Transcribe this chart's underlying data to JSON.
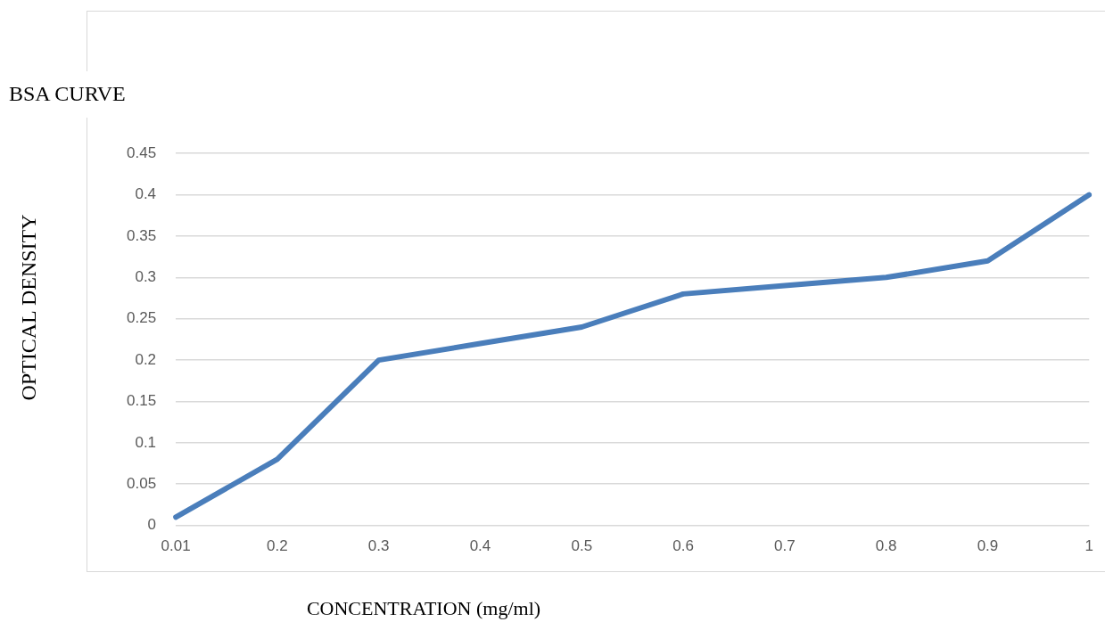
{
  "chart_data": {
    "type": "line",
    "title": "BSA CURVE",
    "xlabel": "CONCENTRATION (mg/ml)",
    "ylabel": "OPTICAL DENSITY",
    "categories": [
      "0.01",
      "0.2",
      "0.3",
      "0.4",
      "0.5",
      "0.6",
      "0.7",
      "0.8",
      "0.9",
      "1"
    ],
    "series": [
      {
        "color": "#4a7ebb",
        "values": [
          0.01,
          0.08,
          0.2,
          0.22,
          0.24,
          0.28,
          0.29,
          0.3,
          0.32,
          0.4
        ]
      }
    ],
    "ylim": [
      0,
      0.45
    ],
    "yticks": [
      0,
      0.05,
      0.1,
      0.15,
      0.2,
      0.25,
      0.3,
      0.35,
      0.4,
      0.45
    ],
    "grid": "y",
    "legend": false,
    "marker": "none",
    "line_style": "solid"
  }
}
